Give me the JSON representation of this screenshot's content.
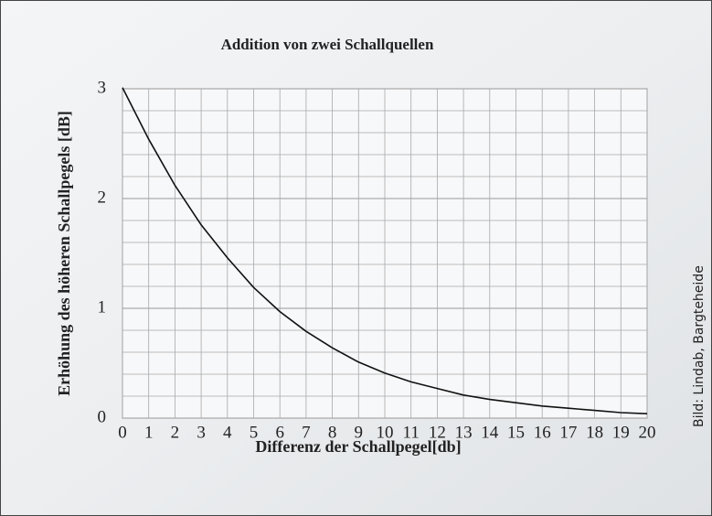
{
  "chart_data": {
    "type": "line",
    "title": "Addition von zwei Schallquellen",
    "x_label": "Differenz der Schallpegel[db]",
    "y_label": "Erhöhung des höheren Schallpegels [dB]",
    "credit": "Bild: Lindab, Bargteheide",
    "x": [
      0,
      1,
      2,
      3,
      4,
      5,
      6,
      7,
      8,
      9,
      10,
      11,
      12,
      13,
      14,
      15,
      16,
      17,
      18,
      19,
      20
    ],
    "series": [
      {
        "color": "#111111",
        "values": [
          3.01,
          2.54,
          2.12,
          1.76,
          1.46,
          1.19,
          0.97,
          0.79,
          0.64,
          0.51,
          0.41,
          0.33,
          0.27,
          0.21,
          0.17,
          0.14,
          0.11,
          0.09,
          0.07,
          0.05,
          0.04
        ]
      }
    ],
    "xlim": [
      0,
      20
    ],
    "xticks": [
      0,
      1,
      2,
      3,
      4,
      5,
      6,
      7,
      8,
      9,
      10,
      11,
      12,
      13,
      14,
      15,
      16,
      17,
      18,
      19,
      20
    ],
    "ylim": [
      0,
      3
    ],
    "yticks": [
      0,
      1,
      2,
      3
    ],
    "minor_ygrid": [
      0.2,
      0.4,
      0.6,
      0.8,
      1.2,
      1.4,
      1.6,
      1.8,
      2.2,
      2.4,
      2.6,
      2.8
    ],
    "grid": true
  }
}
